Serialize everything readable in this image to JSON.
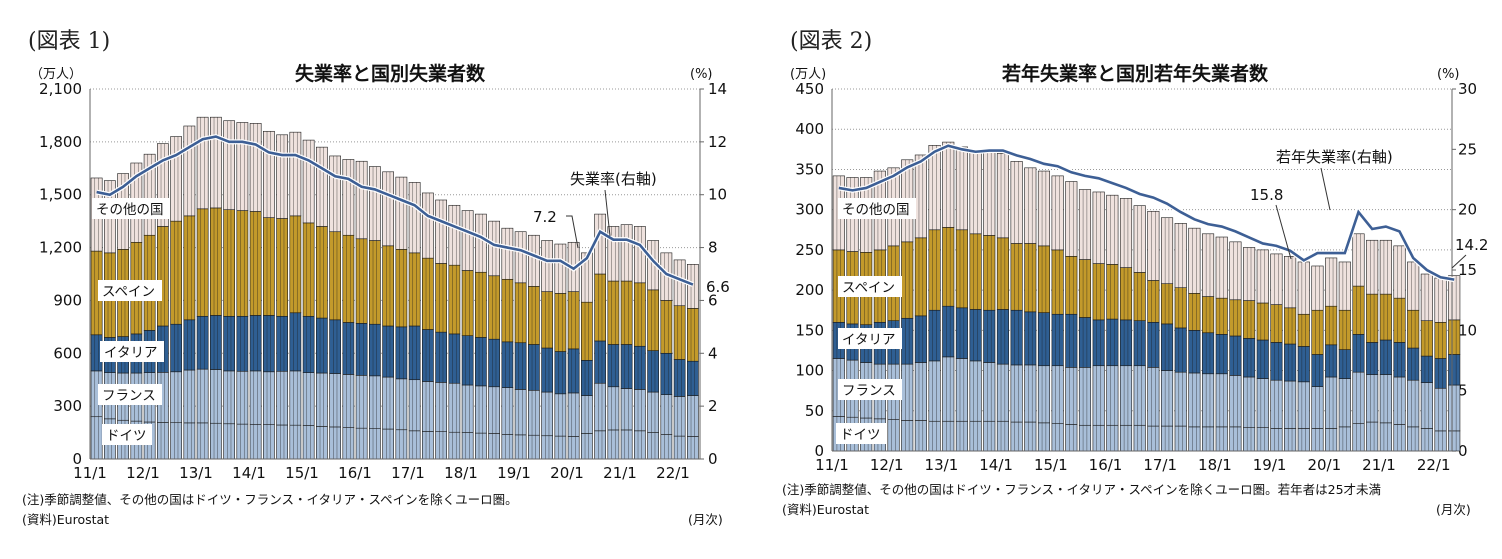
{
  "figures": [
    {
      "label": "(図表 1)",
      "note": "(注)季節調整値、その他の国はドイツ・フランス・イタリア・スペインを除くユーロ圏。",
      "source": "(資料)Eurostat",
      "freq": "(月次)"
    },
    {
      "label": "(図表 2)",
      "note": "(注)季節調整値、その他の国はドイツ・フランス・イタリア・スペインを除くユーロ圏。若年者は25才未満",
      "source": "(資料)Eurostat",
      "freq": "(月次)"
    }
  ],
  "chart_data": [
    {
      "type": "bar",
      "stacked": true,
      "title": "失業率と国別失業者数",
      "ylabel_left": "（万人）",
      "ylabel_right": "(%)",
      "ylim_left": [
        0,
        2100
      ],
      "ylim_right": [
        0,
        14
      ],
      "yticks_left": [
        "0",
        "300",
        "600",
        "900",
        "1,200",
        "1,500",
        "1,800",
        "2,100"
      ],
      "yticks_right": [
        "0",
        "2",
        "4",
        "6",
        "8",
        "10",
        "12",
        "14"
      ],
      "xticks": [
        "11/1",
        "12/1",
        "13/1",
        "14/1",
        "15/1",
        "16/1",
        "17/1",
        "18/1",
        "19/1",
        "20/1",
        "21/1",
        "22/1"
      ],
      "grid": "horizontal dotted",
      "categories": [
        "11/1",
        "11/4",
        "11/7",
        "11/10",
        "12/1",
        "12/4",
        "12/7",
        "12/10",
        "13/1",
        "13/4",
        "13/7",
        "13/10",
        "14/1",
        "14/4",
        "14/7",
        "14/10",
        "15/1",
        "15/4",
        "15/7",
        "15/10",
        "16/1",
        "16/4",
        "16/7",
        "16/10",
        "17/1",
        "17/4",
        "17/7",
        "17/10",
        "18/1",
        "18/4",
        "18/7",
        "18/10",
        "19/1",
        "19/4",
        "19/7",
        "19/10",
        "20/1",
        "20/4",
        "20/7",
        "20/10",
        "21/1",
        "21/4",
        "21/7",
        "21/10",
        "22/1",
        "22/4"
      ],
      "series": [
        {
          "name": "ドイツ",
          "color": "#a9bfd9",
          "values": [
            240,
            228,
            220,
            215,
            210,
            208,
            206,
            205,
            205,
            203,
            200,
            198,
            197,
            195,
            193,
            192,
            190,
            185,
            182,
            178,
            175,
            172,
            170,
            166,
            160,
            157,
            155,
            152,
            150,
            147,
            145,
            140,
            137,
            135,
            132,
            130,
            128,
            145,
            160,
            165,
            165,
            160,
            150,
            140,
            130,
            128
          ]
        },
        {
          "name": "フランス",
          "color": "#a9bfd9",
          "values": [
            260,
            262,
            268,
            273,
            280,
            284,
            289,
            300,
            305,
            305,
            300,
            300,
            303,
            300,
            305,
            308,
            300,
            303,
            303,
            302,
            300,
            300,
            295,
            289,
            290,
            283,
            280,
            278,
            270,
            268,
            265,
            265,
            258,
            255,
            248,
            240,
            247,
            215,
            270,
            245,
            235,
            235,
            230,
            225,
            225,
            232
          ]
        },
        {
          "name": "イタリア",
          "color": "#2f5f93",
          "values": [
            205,
            200,
            207,
            222,
            240,
            263,
            270,
            285,
            300,
            307,
            310,
            312,
            315,
            320,
            312,
            330,
            320,
            312,
            305,
            295,
            295,
            293,
            290,
            295,
            305,
            295,
            285,
            280,
            280,
            275,
            270,
            260,
            265,
            260,
            250,
            240,
            250,
            200,
            240,
            240,
            250,
            245,
            235,
            235,
            210,
            195
          ]
        },
        {
          "name": "スペイン",
          "color": "#c39a2b",
          "values": [
            475,
            480,
            495,
            520,
            540,
            565,
            585,
            590,
            610,
            610,
            605,
            600,
            590,
            555,
            555,
            550,
            530,
            520,
            500,
            495,
            480,
            475,
            455,
            440,
            415,
            405,
            390,
            390,
            370,
            370,
            360,
            355,
            340,
            330,
            320,
            330,
            325,
            330,
            380,
            360,
            360,
            360,
            345,
            300,
            305,
            300
          ]
        },
        {
          "name": "その他の国",
          "color": "#efe2de",
          "values": [
            415,
            410,
            430,
            450,
            460,
            470,
            480,
            510,
            520,
            515,
            505,
            500,
            500,
            490,
            475,
            475,
            470,
            450,
            430,
            430,
            440,
            420,
            420,
            410,
            400,
            370,
            360,
            340,
            340,
            330,
            310,
            290,
            290,
            290,
            290,
            280,
            280,
            280,
            340,
            310,
            320,
            320,
            280,
            270,
            260,
            250
          ]
        }
      ],
      "line": {
        "name": "失業率(右軸)",
        "axis": "right",
        "color": "#3d5f95",
        "values": [
          10.1,
          10.0,
          10.3,
          10.7,
          11.0,
          11.3,
          11.5,
          11.8,
          12.1,
          12.2,
          12.0,
          12.0,
          11.9,
          11.6,
          11.5,
          11.5,
          11.3,
          11.0,
          10.7,
          10.6,
          10.3,
          10.2,
          10.0,
          9.8,
          9.6,
          9.2,
          9.0,
          8.8,
          8.6,
          8.4,
          8.1,
          8.0,
          7.9,
          7.7,
          7.5,
          7.5,
          7.2,
          7.6,
          8.6,
          8.3,
          8.3,
          8.1,
          7.5,
          7.0,
          6.8,
          6.6
        ]
      },
      "annotations": [
        "7.2",
        "6.6",
        "失業率(右軸)"
      ]
    },
    {
      "type": "bar",
      "stacked": true,
      "title": "若年失業率と国別若年失業者数",
      "ylabel_left": "(万人)",
      "ylabel_right": "(%)",
      "ylim_left": [
        0,
        450
      ],
      "ylim_right": [
        0,
        30
      ],
      "yticks_left": [
        "0",
        "50",
        "100",
        "150",
        "200",
        "250",
        "300",
        "350",
        "400",
        "450"
      ],
      "yticks_right": [
        "0",
        "5",
        "10",
        "15",
        "20",
        "25",
        "30"
      ],
      "xticks": [
        "11/1",
        "12/1",
        "13/1",
        "14/1",
        "15/1",
        "16/1",
        "17/1",
        "18/1",
        "19/1",
        "20/1",
        "21/1",
        "22/1"
      ],
      "grid": "horizontal dotted",
      "categories": [
        "11/1",
        "11/4",
        "11/7",
        "11/10",
        "12/1",
        "12/4",
        "12/7",
        "12/10",
        "13/1",
        "13/4",
        "13/7",
        "13/10",
        "14/1",
        "14/4",
        "14/7",
        "14/10",
        "15/1",
        "15/4",
        "15/7",
        "15/10",
        "16/1",
        "16/4",
        "16/7",
        "16/10",
        "17/1",
        "17/4",
        "17/7",
        "17/10",
        "18/1",
        "18/4",
        "18/7",
        "18/10",
        "19/1",
        "19/4",
        "19/7",
        "19/10",
        "20/1",
        "20/4",
        "20/7",
        "20/10",
        "21/1",
        "21/4",
        "21/7",
        "21/10",
        "22/1",
        "22/4"
      ],
      "series": [
        {
          "name": "ドイツ",
          "color": "#a9bfd9",
          "values": [
            43,
            42,
            41,
            40,
            39,
            38,
            38,
            37,
            37,
            37,
            37,
            37,
            37,
            36,
            36,
            35,
            34,
            33,
            32,
            32,
            32,
            32,
            32,
            31,
            31,
            31,
            30,
            30,
            30,
            30,
            29,
            29,
            28,
            28,
            28,
            28,
            28,
            30,
            34,
            36,
            35,
            33,
            30,
            28,
            25,
            25
          ]
        },
        {
          "name": "フランス",
          "color": "#a9bfd9",
          "values": [
            72,
            71,
            69,
            68,
            69,
            70,
            72,
            75,
            80,
            78,
            75,
            73,
            71,
            71,
            71,
            71,
            72,
            71,
            72,
            74,
            74,
            74,
            74,
            73,
            69,
            67,
            67,
            66,
            66,
            64,
            63,
            61,
            60,
            59,
            58,
            52,
            64,
            60,
            64,
            59,
            60,
            59,
            58,
            57,
            53,
            57
          ]
        },
        {
          "name": "イタリア",
          "color": "#2f5f93",
          "values": [
            45,
            45,
            47,
            52,
            54,
            57,
            58,
            63,
            63,
            63,
            64,
            65,
            68,
            68,
            66,
            66,
            64,
            66,
            62,
            57,
            58,
            57,
            56,
            56,
            58,
            55,
            53,
            51,
            49,
            49,
            48,
            48,
            47,
            46,
            44,
            40,
            40,
            36,
            47,
            40,
            43,
            43,
            40,
            33,
            37,
            38
          ]
        },
        {
          "name": "スペイン",
          "color": "#c39a2b",
          "values": [
            90,
            90,
            90,
            90,
            93,
            95,
            97,
            100,
            98,
            97,
            94,
            93,
            89,
            83,
            85,
            83,
            80,
            72,
            72,
            70,
            68,
            65,
            60,
            52,
            50,
            50,
            46,
            45,
            45,
            45,
            47,
            46,
            47,
            45,
            40,
            55,
            48,
            49,
            60,
            60,
            57,
            55,
            47,
            44,
            45,
            43
          ]
        },
        {
          "name": "その他の国",
          "color": "#efe2de",
          "values": [
            92,
            92,
            93,
            98,
            97,
            102,
            103,
            105,
            106,
            103,
            104,
            104,
            105,
            102,
            94,
            93,
            92,
            93,
            87,
            89,
            86,
            86,
            83,
            86,
            82,
            80,
            81,
            78,
            76,
            72,
            66,
            66,
            63,
            64,
            65,
            55,
            60,
            60,
            65,
            67,
            67,
            65,
            60,
            58,
            55,
            55
          ]
        }
      ],
      "line": {
        "name": "若年失業率(右軸)",
        "axis": "right",
        "color": "#3d5f95",
        "values": [
          21.8,
          21.6,
          21.8,
          22.3,
          22.8,
          23.5,
          24.0,
          24.8,
          25.3,
          25.0,
          24.8,
          24.9,
          24.9,
          24.5,
          24.2,
          23.8,
          23.6,
          23.1,
          22.8,
          22.6,
          22.2,
          21.8,
          21.3,
          21.0,
          20.5,
          19.8,
          19.2,
          18.8,
          18.6,
          18.2,
          17.7,
          17.2,
          17.0,
          16.6,
          15.8,
          16.4,
          16.4,
          16.4,
          19.8,
          18.4,
          18.6,
          18.2,
          16.0,
          15.0,
          14.4,
          14.2
        ]
      },
      "annotations": [
        "15.8",
        "14.2",
        "若年失業率(右軸)"
      ]
    }
  ]
}
